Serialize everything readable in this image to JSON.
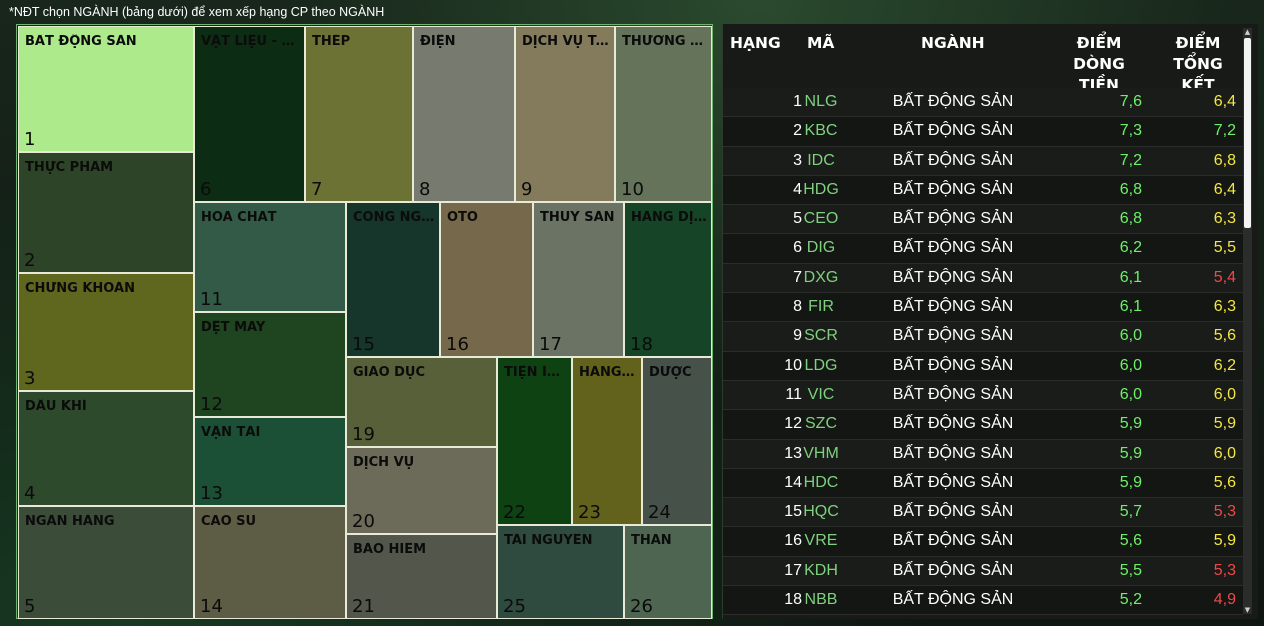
{
  "hint_text": "*NĐT chọn NGÀNH (bảng dưới) để xem xếp hạng CP theo NGÀNH",
  "treemap": [
    {
      "label": "BẤT ĐỘNG SẢN",
      "num": "1",
      "color": "#acea8c"
    },
    {
      "label": "VẬT LIỆU - XÂY DỰNG",
      "num": "6",
      "color": "#0d2c14"
    },
    {
      "label": "THÉP",
      "num": "7",
      "color": "#6b7233"
    },
    {
      "label": "ĐIỆN",
      "num": "8",
      "color": "#777a6e"
    },
    {
      "label": "DỊCH VỤ TÀI CHÍNH",
      "num": "9",
      "color": "#847a5c"
    },
    {
      "label": "THƯƠNG MẠI",
      "num": "10",
      "color": "#64735a"
    },
    {
      "label": "THỰC PHẨM",
      "num": "2",
      "color": "#2e4428"
    },
    {
      "label": "HÓA CHẤT",
      "num": "11",
      "color": "#325a46"
    },
    {
      "label": "CÔNG NGHỆ",
      "num": "15",
      "color": "#16362c"
    },
    {
      "label": "ÔTÔ",
      "num": "16",
      "color": "#76684a"
    },
    {
      "label": "THỦY SẢN",
      "num": "17",
      "color": "#6a7364"
    },
    {
      "label": "HÀNG DỊCH VỤ",
      "num": "18",
      "color": "#154526"
    },
    {
      "label": "CHỨNG KHOÁN",
      "num": "3",
      "color": "#5f661e"
    },
    {
      "label": "DỆT MAY",
      "num": "12",
      "color": "#1f4520"
    },
    {
      "label": "DẦU KHÍ",
      "num": "4",
      "color": "#2e4a2c"
    },
    {
      "label": "VẬN TẢI",
      "num": "13",
      "color": "#1b5036"
    },
    {
      "label": "GIÁO DỤC",
      "num": "19",
      "color": "#58603a"
    },
    {
      "label": "TIỆN ÍCH",
      "num": "22",
      "color": "#0f4213"
    },
    {
      "label": "HÀNG TIÊU DÙNG",
      "num": "23",
      "color": "#63621c"
    },
    {
      "label": "DƯỢC",
      "num": "24",
      "color": "#46514a"
    },
    {
      "label": "DỊCH VỤ",
      "num": "20",
      "color": "#6c6a58"
    },
    {
      "label": "NGÂN HÀNG",
      "num": "5",
      "color": "#3b4d38"
    },
    {
      "label": "CAO SU",
      "num": "14",
      "color": "#5d5c44"
    },
    {
      "label": "BẢO HIỂM",
      "num": "21",
      "color": "#53564a"
    },
    {
      "label": "TÀI NGUYÊN",
      "num": "25",
      "color": "#2f4a3f"
    },
    {
      "label": "THAN",
      "num": "26",
      "color": "#4e6551"
    }
  ],
  "table": {
    "headers": {
      "rank": "HẠNG",
      "code": "MÃ",
      "sector": "NGÀNH",
      "flow_line1": "ĐIỂM",
      "flow_line2": "DÒNG TIỀN",
      "total_line1": "ĐIỂM",
      "total_line2": "TỔNG KẾT"
    },
    "rows": [
      {
        "rank": "1",
        "code": "NLG",
        "sector": "BẤT ĐỘNG SẢN",
        "flow": "7,6",
        "total": "6,4",
        "total_color": "#f5e642"
      },
      {
        "rank": "2",
        "code": "KBC",
        "sector": "BẤT ĐỘNG SẢN",
        "flow": "7,3",
        "total": "7,2",
        "total_color": "#6ef06a"
      },
      {
        "rank": "3",
        "code": "IDC",
        "sector": "BẤT ĐỘNG SẢN",
        "flow": "7,2",
        "total": "6,8",
        "total_color": "#f5e642"
      },
      {
        "rank": "4",
        "code": "HDG",
        "sector": "BẤT ĐỘNG SẢN",
        "flow": "6,8",
        "total": "6,4",
        "total_color": "#f5e642"
      },
      {
        "rank": "5",
        "code": "CEO",
        "sector": "BẤT ĐỘNG SẢN",
        "flow": "6,8",
        "total": "6,3",
        "total_color": "#f5e642"
      },
      {
        "rank": "6",
        "code": "DIG",
        "sector": "BẤT ĐỘNG SẢN",
        "flow": "6,2",
        "total": "5,5",
        "total_color": "#f5e642"
      },
      {
        "rank": "7",
        "code": "DXG",
        "sector": "BẤT ĐỘNG SẢN",
        "flow": "6,1",
        "total": "5,4",
        "total_color": "#f04848"
      },
      {
        "rank": "8",
        "code": "FIR",
        "sector": "BẤT ĐỘNG SẢN",
        "flow": "6,1",
        "total": "6,3",
        "total_color": "#f5e642"
      },
      {
        "rank": "9",
        "code": "SCR",
        "sector": "BẤT ĐỘNG SẢN",
        "flow": "6,0",
        "total": "5,6",
        "total_color": "#f5e642"
      },
      {
        "rank": "10",
        "code": "LDG",
        "sector": "BẤT ĐỘNG SẢN",
        "flow": "6,0",
        "total": "6,2",
        "total_color": "#f5e642"
      },
      {
        "rank": "11",
        "code": "VIC",
        "sector": "BẤT ĐỘNG SẢN",
        "flow": "6,0",
        "total": "6,0",
        "total_color": "#f5e642"
      },
      {
        "rank": "12",
        "code": "SZC",
        "sector": "BẤT ĐỘNG SẢN",
        "flow": "5,9",
        "total": "5,9",
        "total_color": "#f5e642"
      },
      {
        "rank": "13",
        "code": "VHM",
        "sector": "BẤT ĐỘNG SẢN",
        "flow": "5,9",
        "total": "6,0",
        "total_color": "#f5e642"
      },
      {
        "rank": "14",
        "code": "HDC",
        "sector": "BẤT ĐỘNG SẢN",
        "flow": "5,9",
        "total": "5,6",
        "total_color": "#f5e642"
      },
      {
        "rank": "15",
        "code": "HQC",
        "sector": "BẤT ĐỘNG SẢN",
        "flow": "5,7",
        "total": "5,3",
        "total_color": "#f04848"
      },
      {
        "rank": "16",
        "code": "VRE",
        "sector": "BẤT ĐỘNG SẢN",
        "flow": "5,6",
        "total": "5,9",
        "total_color": "#f5e642"
      },
      {
        "rank": "17",
        "code": "KDH",
        "sector": "BẤT ĐỘNG SẢN",
        "flow": "5,5",
        "total": "5,3",
        "total_color": "#f04848"
      },
      {
        "rank": "18",
        "code": "NBB",
        "sector": "BẤT ĐỘNG SẢN",
        "flow": "5,2",
        "total": "4,9",
        "total_color": "#f04848"
      }
    ]
  }
}
